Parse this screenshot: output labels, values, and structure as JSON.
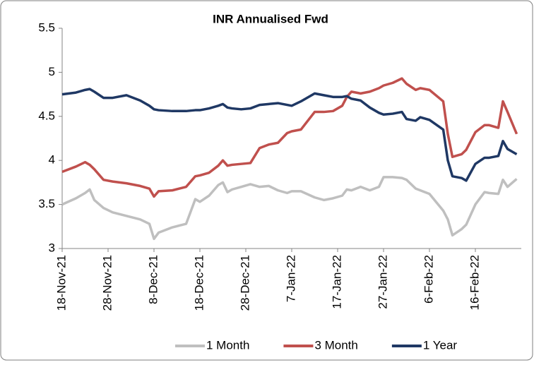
{
  "chart_data": {
    "type": "line",
    "title": "INR Annualised Fwd",
    "x": [
      "2021-11-18",
      "2021-11-21",
      "2021-11-23",
      "2021-11-24",
      "2021-11-25",
      "2021-11-27",
      "2021-11-29",
      "2021-12-02",
      "2021-12-05",
      "2021-12-07",
      "2021-12-08",
      "2021-12-09",
      "2021-12-12",
      "2021-12-15",
      "2021-12-17",
      "2021-12-18",
      "2021-12-20",
      "2021-12-22",
      "2021-12-23",
      "2021-12-24",
      "2021-12-25",
      "2021-12-27",
      "2021-12-29",
      "2021-12-31",
      "2022-01-02",
      "2022-01-04",
      "2022-01-06",
      "2022-01-07",
      "2022-01-09",
      "2022-01-12",
      "2022-01-14",
      "2022-01-16",
      "2022-01-18",
      "2022-01-19",
      "2022-01-20",
      "2022-01-22",
      "2022-01-24",
      "2022-01-26",
      "2022-01-27",
      "2022-01-29",
      "2022-01-31",
      "2022-02-01",
      "2022-02-03",
      "2022-02-04",
      "2022-02-06",
      "2022-02-09",
      "2022-02-10",
      "2022-02-11",
      "2022-02-13",
      "2022-02-14",
      "2022-02-16",
      "2022-02-18",
      "2022-02-19",
      "2022-02-21",
      "2022-02-22",
      "2022-02-23",
      "2022-02-25"
    ],
    "series": [
      {
        "name": "1 Month",
        "color": "#bfbfbf",
        "values": [
          3.5,
          3.57,
          3.63,
          3.67,
          3.55,
          3.46,
          3.41,
          3.37,
          3.33,
          3.28,
          3.11,
          3.18,
          3.24,
          3.28,
          3.56,
          3.53,
          3.6,
          3.72,
          3.75,
          3.64,
          3.67,
          3.7,
          3.73,
          3.7,
          3.71,
          3.66,
          3.63,
          3.65,
          3.65,
          3.58,
          3.55,
          3.57,
          3.6,
          3.67,
          3.66,
          3.7,
          3.66,
          3.7,
          3.81,
          3.81,
          3.8,
          3.78,
          3.68,
          3.66,
          3.62,
          3.43,
          3.33,
          3.15,
          3.22,
          3.27,
          3.5,
          3.64,
          3.63,
          3.62,
          3.78,
          3.7,
          3.79
        ]
      },
      {
        "name": "3 Month",
        "color": "#c0504d",
        "values": [
          3.87,
          3.93,
          3.98,
          3.95,
          3.9,
          3.78,
          3.76,
          3.74,
          3.71,
          3.68,
          3.59,
          3.65,
          3.66,
          3.7,
          3.82,
          3.83,
          3.86,
          3.94,
          4.0,
          3.94,
          3.95,
          3.96,
          3.97,
          4.14,
          4.18,
          4.2,
          4.31,
          4.33,
          4.35,
          4.55,
          4.55,
          4.56,
          4.62,
          4.72,
          4.78,
          4.76,
          4.78,
          4.82,
          4.85,
          4.88,
          4.93,
          4.87,
          4.8,
          4.82,
          4.8,
          4.67,
          4.3,
          4.04,
          4.07,
          4.12,
          4.32,
          4.4,
          4.4,
          4.37,
          4.67,
          4.55,
          4.3
        ]
      },
      {
        "name": "1 Year",
        "color": "#1f3864",
        "values": [
          4.75,
          4.77,
          4.8,
          4.81,
          4.78,
          4.71,
          4.71,
          4.74,
          4.68,
          4.62,
          4.58,
          4.57,
          4.56,
          4.56,
          4.57,
          4.57,
          4.59,
          4.62,
          4.64,
          4.6,
          4.59,
          4.58,
          4.59,
          4.63,
          4.64,
          4.65,
          4.63,
          4.62,
          4.67,
          4.76,
          4.74,
          4.72,
          4.72,
          4.73,
          4.7,
          4.68,
          4.6,
          4.54,
          4.52,
          4.53,
          4.55,
          4.47,
          4.45,
          4.49,
          4.46,
          4.35,
          4.0,
          3.82,
          3.8,
          3.77,
          3.96,
          4.03,
          4.03,
          4.05,
          4.22,
          4.13,
          4.07
        ]
      }
    ],
    "xlim": [
      "2021-11-18",
      "2022-02-26"
    ],
    "xticks": [
      {
        "value": "2021-11-18",
        "label": "18-Nov-21"
      },
      {
        "value": "2021-11-28",
        "label": "28-Nov-21"
      },
      {
        "value": "2021-12-08",
        "label": "8-Dec-21"
      },
      {
        "value": "2021-12-18",
        "label": "18-Dec-21"
      },
      {
        "value": "2021-12-28",
        "label": "28-Dec-21"
      },
      {
        "value": "2022-01-07",
        "label": "7-Jan-22"
      },
      {
        "value": "2022-01-17",
        "label": "17-Jan-22"
      },
      {
        "value": "2022-01-27",
        "label": "27-Jan-22"
      },
      {
        "value": "2022-02-06",
        "label": "6-Feb-22"
      },
      {
        "value": "2022-02-16",
        "label": "16-Feb-22"
      }
    ],
    "ylim": [
      3,
      5.5
    ],
    "yticks": [
      3,
      3.5,
      4,
      4.5,
      5,
      5.5
    ],
    "grid": false,
    "legend": "bottom"
  }
}
